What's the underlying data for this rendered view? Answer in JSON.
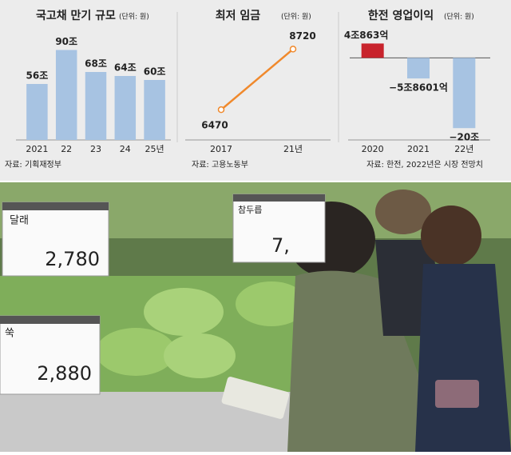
{
  "chart_data": [
    {
      "type": "bar",
      "title": "국고채 만기 규모",
      "unit": "(단위: 원)",
      "categories": [
        "2021",
        "22",
        "23",
        "24",
        "25년"
      ],
      "values": [
        56,
        90,
        68,
        64,
        60
      ],
      "value_labels": [
        "56조",
        "90조",
        "68조",
        "64조",
        "60조"
      ],
      "color": "#a7c3e2",
      "ylim": [
        0,
        100
      ],
      "source": "자료: 기획재정부"
    },
    {
      "type": "line",
      "title": "최저 임금",
      "unit": "(단위: 원)",
      "categories": [
        "2017",
        "21년"
      ],
      "values": [
        6470,
        8720
      ],
      "color": "#f0892c",
      "ylim": [
        6000,
        9000
      ],
      "source": "자료: 고용노동부"
    },
    {
      "type": "bar",
      "title": "한전 영업이익",
      "unit": "(단위: 원)",
      "categories": [
        "2020",
        "2021",
        "22년"
      ],
      "values": [
        4.0863,
        -5.8601,
        -20
      ],
      "value_labels": [
        "4조863억",
        "−5조8601억",
        "−20조"
      ],
      "colors": [
        "#c8232c",
        "#a7c3e2",
        "#a7c3e2"
      ],
      "ylim": [
        -22,
        6
      ],
      "source": "자료: 한전, 2022년은 시장 전망치"
    }
  ],
  "photo": {
    "tags": [
      {
        "name": "달래",
        "price": "2,780"
      },
      {
        "name": "쑥",
        "price": "2,880"
      },
      {
        "name": "참두릅",
        "price": "7,"
      }
    ]
  }
}
